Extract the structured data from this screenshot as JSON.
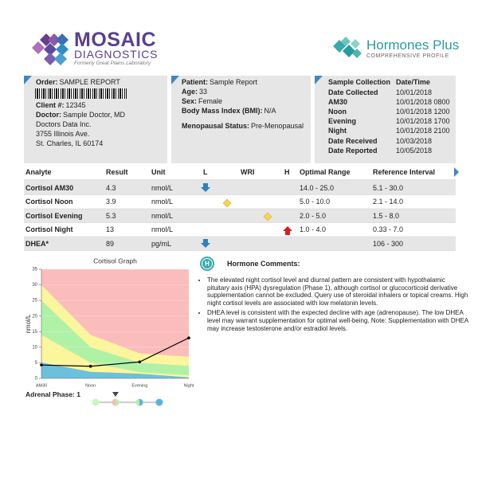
{
  "header": {
    "brand": "MOSAIC",
    "brand_sub": "DIAGNOSTICS",
    "brand_note": "Formerly Great Plains Laboratory",
    "product": "Hormones Plus",
    "product_sub": "COMPREHENSIVE PROFILE"
  },
  "order_box": {
    "order_label": "Order:",
    "order": "SAMPLE REPORT",
    "client_label": "Client #:",
    "client": "12345",
    "doctor_label": "Doctor:",
    "doctor": "Sample Doctor, MD",
    "address": [
      "Doctors Data Inc.",
      "3755 Illinois Ave.",
      "St. Charles, IL 60174"
    ]
  },
  "patient_box": {
    "patient_label": "Patient:",
    "patient": "Sample Report",
    "age_label": "Age:",
    "age": "33",
    "sex_label": "Sex:",
    "sex": "Female",
    "bmi_label": "Body Mass Index (BMI):",
    "bmi": "N/A",
    "menopausal_label": "Menopausal Status:",
    "menopausal": "Pre-Menopausal"
  },
  "collection_box": {
    "header": [
      "Sample Collection",
      "Date/Time"
    ],
    "rows": [
      [
        "Date Collected",
        "10/01/2018"
      ],
      [
        "AM30",
        "10/01/2018 0800"
      ],
      [
        "Noon",
        "10/01/2018 1200"
      ],
      [
        "Evening",
        "10/01/2018 1700"
      ],
      [
        "Night",
        "10/01/2018 2100"
      ],
      [
        "Date Received",
        "10/03/2018"
      ],
      [
        "Date Reported",
        "10/05/2018"
      ]
    ]
  },
  "results": {
    "columns": [
      "Analyte",
      "Result",
      "Unit",
      "L",
      "WRI",
      "H",
      "Optimal Range",
      "Reference Interval"
    ],
    "rows": [
      {
        "analyte": "Cortisol AM30",
        "result": "4.3",
        "unit": "nmol/L",
        "optimal": "14.0 - 25.0",
        "reference": "5.1 - 30.0"
      },
      {
        "analyte": "Cortisol Noon",
        "result": "3.9",
        "unit": "nmol/L",
        "optimal": "5.0 - 10.0",
        "reference": "2.1 - 14.0"
      },
      {
        "analyte": "Cortisol Evening",
        "result": "5.3",
        "unit": "nmol/L",
        "optimal": "2.0 - 5.0",
        "reference": "1.5 - 8.0"
      },
      {
        "analyte": "Cortisol Night",
        "result": "13",
        "unit": "nmol/L",
        "optimal": "1.0 - 4.0",
        "reference": "0.33 - 7.0"
      },
      {
        "analyte": "DHEA*",
        "result": "89",
        "unit": "pg/mL",
        "reference": "106 - 300"
      }
    ]
  },
  "chart_data": {
    "type": "line",
    "title": "Cortisol Graph",
    "y_label": "nmol/L",
    "categories": [
      "AM30",
      "Noon",
      "Evening",
      "Night"
    ],
    "values": [
      4.3,
      3.9,
      5.3,
      13
    ],
    "color": "#000000",
    "bands": {
      "reference_low": [
        5.1,
        2.1,
        1.5,
        0.33
      ],
      "optimal_low": [
        14,
        5,
        2,
        1
      ],
      "optimal_high": [
        25,
        10,
        5,
        4
      ],
      "reference_high": [
        30,
        14,
        8,
        7
      ]
    },
    "band_colors": {
      "below": "#6cc0dc",
      "reference": "#fbf59b",
      "optimal": "#aff2a6",
      "above": "#fbbcbc"
    },
    "ylim": [
      0,
      35
    ],
    "yticks": [
      0,
      5,
      10,
      15,
      20,
      25,
      30,
      35
    ],
    "grid": true
  },
  "adrenal_phase": "Adrenal Phase: 1",
  "comments": {
    "title": "Hormone Comments:",
    "items": [
      "The elevated night cortisol level and diurnal pattern are consistent with hypothalamic pituitary axis (HPA) dysregulation (Phase 1), although cortisol or glucocorticoid derivative supplementation cannot be excluded. Query use of steroidal inhalers or topical creams. High night cortisol levels are associated with low melatonin levels.",
      "DHEA level is consistent with the expected decline with age (adrenopause). The low DHEA level may warrant supplementation for optimal well-being. Note: Supplementation with DHEA may increase testosterone and/or estradiol levels."
    ]
  }
}
